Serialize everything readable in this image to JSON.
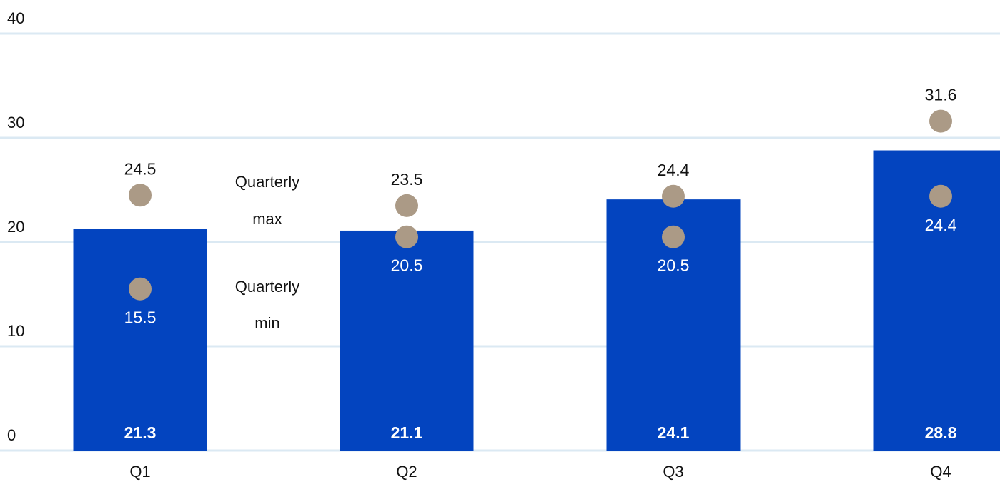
{
  "chart_data": {
    "type": "bar",
    "title": "",
    "xlabel": "",
    "ylabel": "",
    "categories": [
      "Q1",
      "Q2",
      "Q3",
      "Q4"
    ],
    "ylim": [
      0,
      40
    ],
    "yticks": [
      0,
      10,
      20,
      30,
      40
    ],
    "grid": true,
    "series": [
      {
        "kind": "bar",
        "values": [
          21.3,
          21.1,
          24.1,
          28.8
        ],
        "labels": [
          "21.3",
          "21.1",
          "24.1",
          "28.8"
        ]
      },
      {
        "kind": "point",
        "values": [
          24.5,
          23.5,
          24.4,
          31.6
        ],
        "labels": [
          "24.5",
          "23.5",
          "24.4",
          "31.6"
        ]
      },
      {
        "kind": "point",
        "values": [
          15.5,
          20.5,
          20.5,
          24.4
        ],
        "labels": [
          "15.5",
          "20.5",
          "20.5",
          "24.4"
        ]
      }
    ],
    "annotations": {
      "max_line1": "Quarterly",
      "max_line2": "max",
      "min_line1": "Quarterly",
      "min_line2": "min"
    },
    "colors": {
      "bar": "#0344bf",
      "point": "#ab9a86",
      "grid": "#dbe9f3"
    }
  }
}
